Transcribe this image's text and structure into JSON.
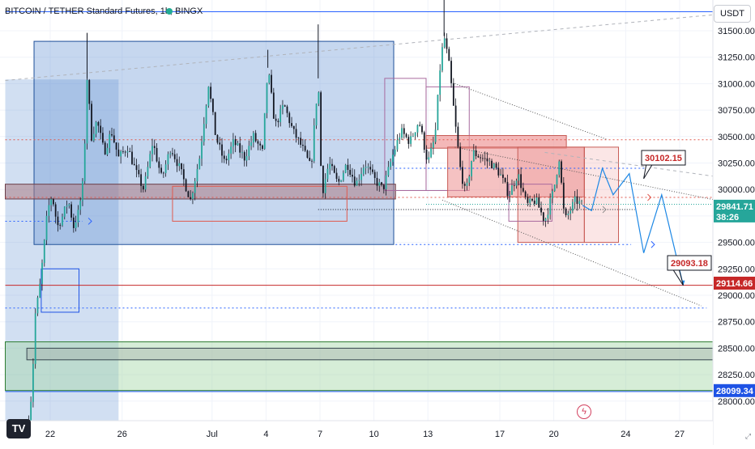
{
  "header": {
    "title": "BITCOIN / TETHER Standard Futures, 1h, BINGX",
    "currency": "USDT",
    "logo": "TV",
    "status_dot_color": "#22ab94"
  },
  "chart_data": {
    "type": "candlestick",
    "symbol": "BITCOIN / TETHER Standard Futures",
    "interval": "1h",
    "exchange": "BINGX",
    "currency": "USDT",
    "y_ticks": [
      31500,
      31250,
      31000,
      30750,
      30500,
      30250,
      30000,
      29750,
      29500,
      29250,
      29000,
      28750,
      28500,
      28250,
      28000
    ],
    "x_ticks": [
      {
        "label": "22",
        "day": 0
      },
      {
        "label": "26",
        "day": 4
      },
      {
        "label": "Jul",
        "day": 9
      },
      {
        "label": "4",
        "day": 12
      },
      {
        "label": "7",
        "day": 15
      },
      {
        "label": "10",
        "day": 18
      },
      {
        "label": "13",
        "day": 21
      },
      {
        "label": "17",
        "day": 25
      },
      {
        "label": "20",
        "day": 28
      },
      {
        "label": "24",
        "day": 32
      },
      {
        "label": "27",
        "day": 35
      }
    ],
    "ylim": [
      27700,
      31700
    ],
    "xlim_days": [
      -1.9,
      37.7
    ],
    "grid": true,
    "price_path": [
      [
        -1.2,
        27800
      ],
      [
        -1.0,
        28150
      ],
      [
        -0.85,
        28800
      ],
      [
        -0.6,
        29050
      ],
      [
        -0.35,
        29450
      ],
      [
        -0.15,
        29800
      ],
      [
        0.1,
        29950
      ],
      [
        0.4,
        29650
      ],
      [
        0.7,
        29750
      ],
      [
        1.0,
        29900
      ],
      [
        1.3,
        29650
      ],
      [
        1.6,
        29800
      ],
      [
        1.85,
        30100
      ],
      [
        2.05,
        31050
      ],
      [
        2.3,
        30500
      ],
      [
        2.6,
        30650
      ],
      [
        3.0,
        30350
      ],
      [
        3.4,
        30550
      ],
      [
        3.8,
        30300
      ],
      [
        4.3,
        30400
      ],
      [
        4.8,
        30150
      ],
      [
        5.2,
        30000
      ],
      [
        5.7,
        30450
      ],
      [
        6.2,
        30100
      ],
      [
        6.7,
        30400
      ],
      [
        7.2,
        30200
      ],
      [
        7.8,
        29900
      ],
      [
        8.3,
        30300
      ],
      [
        8.8,
        31000
      ],
      [
        9.2,
        30500
      ],
      [
        9.7,
        30250
      ],
      [
        10.2,
        30450
      ],
      [
        10.8,
        30300
      ],
      [
        11.3,
        30500
      ],
      [
        11.8,
        30350
      ],
      [
        12.1,
        31150
      ],
      [
        12.5,
        30600
      ],
      [
        13.0,
        30800
      ],
      [
        13.5,
        30550
      ],
      [
        14.0,
        30400
      ],
      [
        14.5,
        30200
      ],
      [
        14.9,
        31050
      ],
      [
        15.1,
        29950
      ],
      [
        15.5,
        30250
      ],
      [
        16.0,
        30050
      ],
      [
        16.5,
        30250
      ],
      [
        17.0,
        30050
      ],
      [
        17.5,
        30250
      ],
      [
        18.0,
        30100
      ],
      [
        18.5,
        30000
      ],
      [
        19.0,
        30300
      ],
      [
        19.5,
        30550
      ],
      [
        20.0,
        30450
      ],
      [
        20.5,
        30650
      ],
      [
        21.0,
        30250
      ],
      [
        21.4,
        30500
      ],
      [
        21.7,
        31200
      ],
      [
        21.9,
        31450
      ],
      [
        22.2,
        31150
      ],
      [
        22.5,
        30650
      ],
      [
        22.8,
        30200
      ],
      [
        23.1,
        29950
      ],
      [
        23.5,
        30350
      ],
      [
        24.0,
        30300
      ],
      [
        24.5,
        30250
      ],
      [
        25.0,
        30150
      ],
      [
        25.5,
        29950
      ],
      [
        26.0,
        30150
      ],
      [
        26.5,
        29850
      ],
      [
        27.0,
        29900
      ],
      [
        27.5,
        29700
      ],
      [
        28.0,
        30000
      ],
      [
        28.3,
        30300
      ],
      [
        28.6,
        29700
      ],
      [
        28.9,
        29800
      ],
      [
        29.2,
        29900
      ],
      [
        29.6,
        29850
      ]
    ],
    "projection_path": [
      [
        29.6,
        29850
      ],
      [
        30.1,
        29800
      ],
      [
        30.7,
        30200
      ],
      [
        31.3,
        29950
      ],
      [
        32.2,
        30150
      ],
      [
        33.0,
        29400
      ],
      [
        34.0,
        29950
      ],
      [
        35.2,
        29093.18
      ]
    ],
    "price_labels": [
      {
        "price": 29841.71,
        "label": "29841.71",
        "color": "#26a69a",
        "countdown": "38:26"
      },
      {
        "price": 29114.66,
        "label": "29114.66",
        "color": "#c62828"
      },
      {
        "price": 28099.34,
        "label": "28099.34",
        "color": "#1e53e5"
      }
    ],
    "callouts": [
      {
        "label": "30102.15",
        "text_color": "#c62828"
      },
      {
        "label": "29093.18",
        "text_color": "#c62828"
      }
    ],
    "colors": {
      "up": "#26a69a",
      "down": "#ef5350",
      "candle": "#131722",
      "blue_zone": "#5b8bd1",
      "red_zone": "#ef9a9a",
      "green_zone": "#a5d6a7",
      "red_line": "#e05a4f",
      "blue_line": "#2962ff"
    }
  }
}
